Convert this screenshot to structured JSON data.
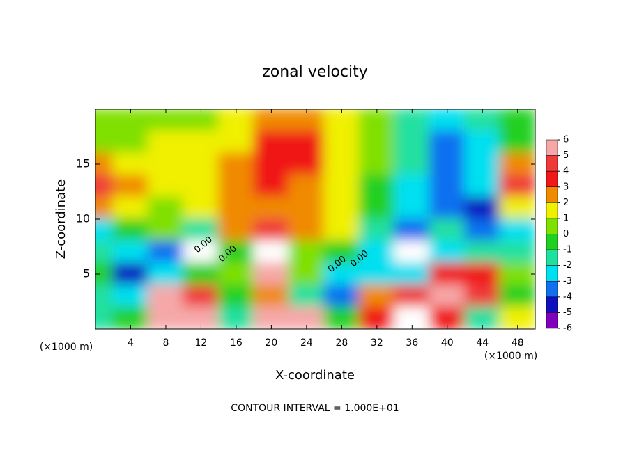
{
  "chart_data": {
    "type": "contour",
    "title": "zonal velocity",
    "x_label": "X-coordinate",
    "y_label": "Z-coordinate",
    "x_unit_label": "(×1000 m)",
    "footer": "CONTOUR INTERVAL = 1.000E+01",
    "contour_labels": [
      "0.00",
      "0.00",
      "0.00",
      "0.00"
    ],
    "xlim": [
      0,
      50
    ],
    "ylim": [
      0,
      20
    ],
    "xticks": [
      4,
      8,
      12,
      16,
      20,
      24,
      28,
      32,
      36,
      40,
      44,
      48
    ],
    "yticks": [
      5,
      10,
      15
    ],
    "x": [
      0,
      4,
      8,
      12,
      16,
      20,
      24,
      28,
      32,
      36,
      40,
      44,
      48
    ],
    "z": [
      19,
      17,
      15,
      13,
      11,
      9,
      7,
      5,
      3,
      1
    ],
    "values": [
      [
        0.5,
        0.5,
        0.8,
        0.5,
        1.5,
        2,
        2,
        1,
        0,
        -2,
        -3,
        -2,
        -1
      ],
      [
        0.5,
        0.8,
        1,
        1,
        1.5,
        3,
        3,
        1,
        0,
        -2,
        -4,
        -3,
        -1
      ],
      [
        2,
        1.5,
        1,
        1,
        2,
        3,
        3,
        1.5,
        0,
        -2,
        -4,
        -3,
        2
      ],
      [
        4,
        2,
        1.5,
        1.5,
        2.5,
        3,
        2.5,
        1,
        -0.5,
        -3,
        -4,
        -3,
        4
      ],
      [
        2,
        1,
        0.5,
        1,
        2,
        2.5,
        2,
        1,
        -1,
        -3,
        -4,
        -5,
        1
      ],
      [
        -3,
        -1,
        0,
        -2,
        2,
        4,
        2,
        1,
        -2,
        -4,
        -2,
        -4,
        -3
      ],
      [
        -2,
        -3,
        -4,
        7,
        -1,
        7,
        0,
        -1,
        -3,
        7,
        -3,
        -2,
        -2
      ],
      [
        -1,
        -5,
        -3,
        -1,
        0,
        5,
        0,
        -3,
        -3,
        -3,
        3,
        3,
        0
      ],
      [
        -2,
        -3,
        5,
        4,
        -1,
        2,
        -2,
        -4,
        2,
        4,
        6,
        4,
        -1
      ],
      [
        -2,
        -1,
        6,
        6,
        -2,
        6,
        6,
        -1,
        3,
        7,
        3,
        -2,
        1
      ]
    ],
    "colorbar_ticks": [
      6,
      5,
      4,
      3,
      2,
      1,
      0,
      -1,
      -2,
      -3,
      -4,
      -5,
      -6
    ],
    "colors": [
      "#f6a8a8",
      "#f03a3a",
      "#f01818",
      "#f08a00",
      "#f0f000",
      "#80e000",
      "#20d020",
      "#20e0a0",
      "#00e0f0",
      "#1070f0",
      "#1010c0",
      "#8000c0"
    ],
    "over_color": "#ffffff",
    "under_color": "#500080"
  }
}
